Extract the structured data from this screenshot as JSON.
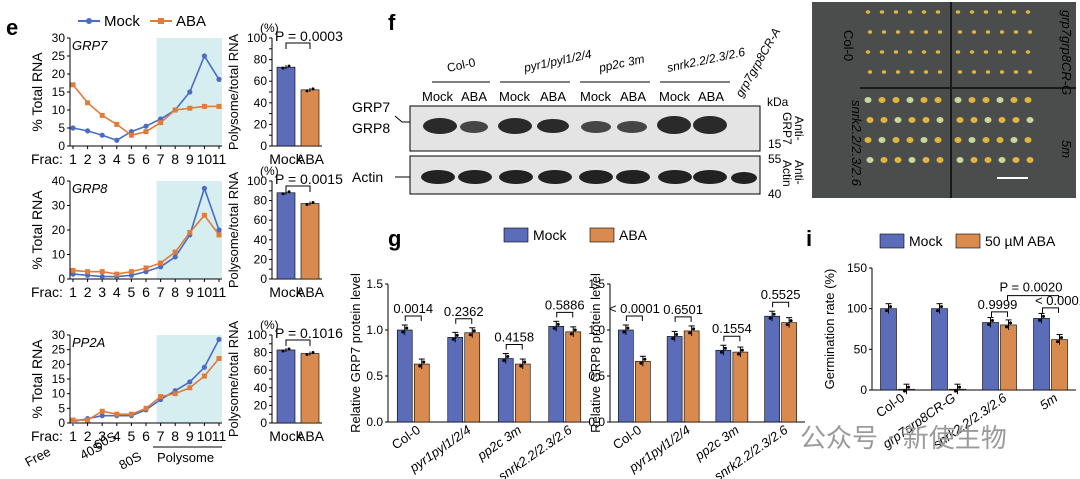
{
  "panels": {
    "e": "e",
    "f": "f",
    "g": "g",
    "i": "i"
  },
  "legend_e": {
    "mock": "Mock",
    "aba": "ABA"
  },
  "colors": {
    "mock": "#4a6cc4",
    "aba": "#e07b3a",
    "mockbar": "#5b6cb8",
    "ababar": "#d98a4e",
    "band": "#d6eef0"
  },
  "profile_common": {
    "frac_label": "Frac:",
    "frac_ticks": [
      "1",
      "2",
      "3",
      "4",
      "5",
      "6",
      "7",
      "8",
      "9",
      "10",
      "11"
    ],
    "ylabel": "% Total RNA",
    "bar_unit": "(%)",
    "bar_ylabel": "Polysome/total RNA",
    "bar_cats": [
      "Mock",
      "ABA"
    ],
    "bottom_labels": [
      "Free",
      "40S",
      "60S",
      "80S",
      "Polysome"
    ]
  },
  "chart_data": [
    {
      "id": "grp7-profile",
      "type": "line",
      "gene": "GRP7",
      "x": [
        1,
        2,
        3,
        4,
        5,
        6,
        7,
        8,
        9,
        10,
        11
      ],
      "ylim": [
        0,
        30
      ],
      "yticks": [
        0,
        5,
        10,
        15,
        20,
        25,
        30
      ],
      "series": [
        {
          "name": "Mock",
          "values": [
            5,
            4.2,
            3,
            1.6,
            4,
            5.5,
            7.5,
            10,
            15,
            25,
            18.5
          ]
        },
        {
          "name": "ABA",
          "values": [
            17,
            12,
            8.5,
            6,
            3,
            4,
            6.5,
            10,
            10.5,
            11,
            11
          ]
        }
      ]
    },
    {
      "id": "grp7-bar",
      "type": "bar",
      "gene": "GRP7",
      "categories": [
        "Mock",
        "ABA"
      ],
      "values": [
        73,
        52
      ],
      "ylim": [
        0,
        100
      ],
      "yticks": [
        0,
        10,
        20,
        30,
        40,
        50,
        60,
        70,
        80,
        90,
        100
      ],
      "pvalue": "P = 0.0003"
    },
    {
      "id": "grp8-profile",
      "type": "line",
      "gene": "GRP8",
      "x": [
        1,
        2,
        3,
        4,
        5,
        6,
        7,
        8,
        9,
        10,
        11
      ],
      "ylim": [
        0,
        40
      ],
      "yticks": [
        0,
        10,
        20,
        30,
        40
      ],
      "series": [
        {
          "name": "Mock",
          "values": [
            2,
            1.5,
            1,
            1,
            1.5,
            3,
            5,
            9,
            18,
            37,
            20
          ]
        },
        {
          "name": "ABA",
          "values": [
            3.5,
            3,
            3,
            2,
            3,
            4.5,
            6.5,
            11,
            19,
            26,
            18
          ]
        }
      ]
    },
    {
      "id": "grp8-bar",
      "type": "bar",
      "gene": "GRP8",
      "categories": [
        "Mock",
        "ABA"
      ],
      "values": [
        88,
        77
      ],
      "ylim": [
        0,
        100
      ],
      "yticks": [
        0,
        10,
        20,
        30,
        40,
        50,
        60,
        70,
        80,
        90,
        100
      ],
      "pvalue": "P = 0.0015"
    },
    {
      "id": "pp2a-profile",
      "type": "line",
      "gene": "PP2A",
      "x": [
        1,
        2,
        3,
        4,
        5,
        6,
        7,
        8,
        9,
        10,
        11
      ],
      "ylim": [
        0,
        30
      ],
      "yticks": [
        0,
        5,
        10,
        15,
        20,
        25,
        30
      ],
      "series": [
        {
          "name": "Mock",
          "values": [
            0.5,
            1.5,
            2.5,
            2.5,
            2.5,
            4.5,
            8,
            11,
            14,
            19,
            28.5
          ]
        },
        {
          "name": "ABA",
          "values": [
            1,
            1,
            4,
            3,
            3,
            5,
            9,
            10,
            12,
            16,
            22
          ]
        }
      ]
    },
    {
      "id": "pp2a-bar",
      "type": "bar",
      "gene": "PP2A",
      "categories": [
        "Mock",
        "ABA"
      ],
      "values": [
        83,
        79
      ],
      "ylim": [
        0,
        100
      ],
      "yticks": [
        0,
        10,
        20,
        30,
        40,
        50,
        60,
        70,
        80,
        90,
        100
      ],
      "pvalue": "P = 0.1016"
    },
    {
      "id": "g-grp7",
      "type": "bar",
      "ylabel": "Relative GRP7 protein level",
      "categories": [
        "Col-0",
        "pyr1pyl1/2/4",
        "pp2c 3m",
        "snrk2.2/2.3/2.6"
      ],
      "ylim": [
        0,
        1.5
      ],
      "yticks": [
        0,
        0.5,
        1,
        1.5
      ],
      "series": [
        {
          "name": "Mock",
          "values": [
            1.0,
            0.92,
            0.69,
            1.04
          ]
        },
        {
          "name": "ABA",
          "values": [
            0.63,
            0.97,
            0.63,
            0.98
          ]
        }
      ],
      "pvalues": [
        "0.0014",
        "0.2362",
        "0.4158",
        "0.5886"
      ]
    },
    {
      "id": "g-grp8",
      "type": "bar",
      "ylabel": "Relative GRP8 protein level",
      "categories": [
        "Col-0",
        "pyr1pyl1/2/4",
        "pp2c 3m",
        "snrk2.2/2.3/2.6"
      ],
      "ylim": [
        0,
        1.5
      ],
      "yticks": [
        0,
        0.5,
        1,
        1.5
      ],
      "series": [
        {
          "name": "Mock",
          "values": [
            1.0,
            0.93,
            0.78,
            1.15
          ]
        },
        {
          "name": "ABA",
          "values": [
            0.66,
            0.99,
            0.76,
            1.08
          ]
        }
      ],
      "pvalues": [
        "< 0.0001",
        "0.6501",
        "0.1554",
        "0.5525"
      ]
    },
    {
      "id": "i-germ",
      "type": "bar",
      "ylabel": "Germination rate (%)",
      "categories": [
        "Col-0",
        "grp7grp8CR-G",
        "snrk2.2/2.3/2.6",
        "5m"
      ],
      "ylim": [
        0,
        150
      ],
      "yticks": [
        0,
        50,
        100,
        150
      ],
      "series": [
        {
          "name": "Mock",
          "values": [
            100,
            100,
            83,
            88
          ]
        },
        {
          "name": "50 µM ABA",
          "values": [
            1,
            1,
            80,
            62
          ]
        }
      ],
      "pvalues": [
        "0.9999",
        "< 0.0001",
        "P = 0.0020"
      ]
    }
  ],
  "blot": {
    "genotypes": [
      "Col-0",
      "pyr1/pyl1/2/4",
      "pp2c 3m",
      "snrk2.2/2.3/2.6",
      "grp7grp8CR-A"
    ],
    "treat": [
      "Mock",
      "ABA"
    ],
    "kda": "kDa",
    "grp7": "GRP7",
    "grp8": "GRP8",
    "actin": "Actin",
    "anti_grp7": [
      "Anti-",
      "GRP7"
    ],
    "anti_actin": [
      "Anti-",
      "Actin"
    ],
    "marker_15": "15",
    "marker_55": "55",
    "marker_40": "40"
  },
  "photo": {
    "col0": "Col-0",
    "grp": "grp7grp8CR-G",
    "snrk": "snrk2.2/2.3/2.6",
    "m5": "5m"
  },
  "legend_g": {
    "mock": "Mock",
    "aba": "ABA"
  },
  "legend_i": {
    "mock": "Mock",
    "aba": "50 µM ABA"
  },
  "watermark": "公众号 · 新使生物"
}
